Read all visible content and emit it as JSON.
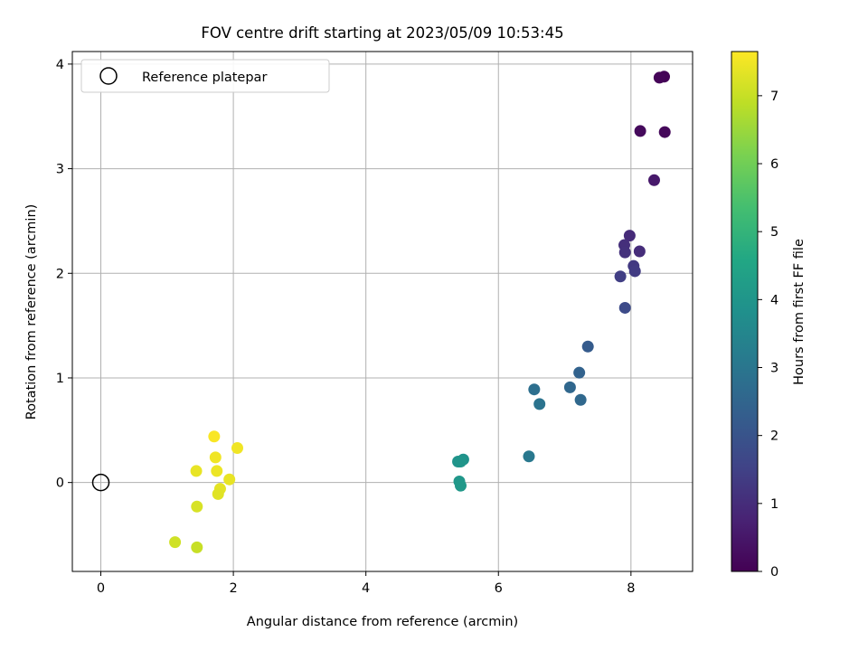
{
  "chart_data": {
    "type": "scatter",
    "title": "FOV centre drift starting at 2023/05/09 10:53:45",
    "xlabel": "Angular distance from reference (arcmin)",
    "ylabel": "Rotation from reference (arcmin)",
    "xlim": [
      -0.43,
      8.93
    ],
    "ylim": [
      -0.85,
      4.12
    ],
    "xticks": [
      0,
      2,
      4,
      6,
      8
    ],
    "yticks": [
      0,
      1,
      2,
      3,
      4
    ],
    "grid": true,
    "legend": {
      "placement": "upper-left",
      "entries": [
        "Reference platepar"
      ]
    },
    "reference": {
      "x": 0,
      "y": 0,
      "label": "Reference platepar"
    },
    "colorbar": {
      "label": "Hours from first FF file",
      "range": [
        0,
        7.65
      ],
      "ticks": [
        0,
        1,
        2,
        3,
        4,
        5,
        6,
        7
      ],
      "colormap": "viridis"
    },
    "points": [
      {
        "x": 8.5,
        "y": 3.88,
        "c": 0.05
      },
      {
        "x": 8.43,
        "y": 3.87,
        "c": 0.1
      },
      {
        "x": 8.14,
        "y": 3.36,
        "c": 0.2
      },
      {
        "x": 8.51,
        "y": 3.35,
        "c": 0.15
      },
      {
        "x": 8.35,
        "y": 2.89,
        "c": 0.55
      },
      {
        "x": 7.98,
        "y": 2.36,
        "c": 0.95
      },
      {
        "x": 7.9,
        "y": 2.27,
        "c": 1.05
      },
      {
        "x": 7.91,
        "y": 2.2,
        "c": 1.1
      },
      {
        "x": 8.13,
        "y": 2.21,
        "c": 1.0
      },
      {
        "x": 8.04,
        "y": 2.07,
        "c": 1.3
      },
      {
        "x": 7.84,
        "y": 1.97,
        "c": 1.4
      },
      {
        "x": 8.06,
        "y": 2.02,
        "c": 1.35
      },
      {
        "x": 7.91,
        "y": 1.67,
        "c": 1.75
      },
      {
        "x": 7.35,
        "y": 1.3,
        "c": 2.2
      },
      {
        "x": 7.22,
        "y": 1.05,
        "c": 2.4
      },
      {
        "x": 7.08,
        "y": 0.91,
        "c": 2.55
      },
      {
        "x": 6.54,
        "y": 0.89,
        "c": 2.8
      },
      {
        "x": 7.24,
        "y": 0.79,
        "c": 2.6
      },
      {
        "x": 6.62,
        "y": 0.75,
        "c": 2.9
      },
      {
        "x": 6.46,
        "y": 0.25,
        "c": 3.05
      },
      {
        "x": 5.47,
        "y": 0.22,
        "c": 3.9
      },
      {
        "x": 5.39,
        "y": 0.2,
        "c": 3.95
      },
      {
        "x": 5.43,
        "y": 0.2,
        "c": 4.0
      },
      {
        "x": 5.41,
        "y": 0.01,
        "c": 4.05
      },
      {
        "x": 5.43,
        "y": -0.03,
        "c": 4.1
      },
      {
        "x": 1.71,
        "y": 0.44,
        "c": 7.6
      },
      {
        "x": 2.06,
        "y": 0.33,
        "c": 7.5
      },
      {
        "x": 1.73,
        "y": 0.24,
        "c": 7.5
      },
      {
        "x": 1.44,
        "y": 0.11,
        "c": 7.4
      },
      {
        "x": 1.75,
        "y": 0.11,
        "c": 7.45
      },
      {
        "x": 1.94,
        "y": 0.03,
        "c": 7.4
      },
      {
        "x": 1.8,
        "y": -0.06,
        "c": 7.35
      },
      {
        "x": 1.77,
        "y": -0.11,
        "c": 7.3
      },
      {
        "x": 1.45,
        "y": -0.23,
        "c": 7.2
      },
      {
        "x": 1.12,
        "y": -0.57,
        "c": 7.1
      },
      {
        "x": 1.45,
        "y": -0.62,
        "c": 7.0
      }
    ]
  }
}
